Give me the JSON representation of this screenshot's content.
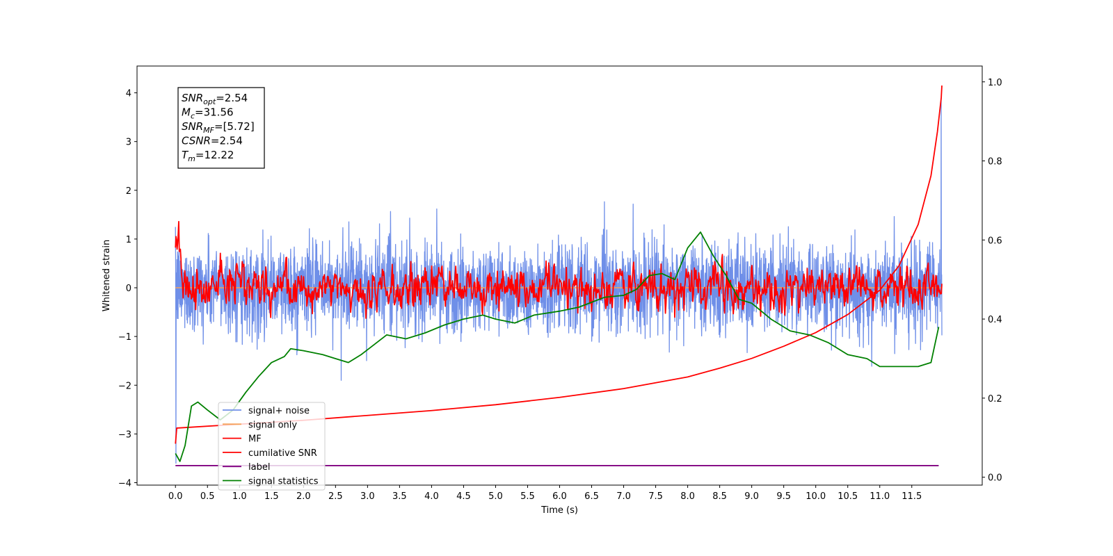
{
  "chart_data": {
    "type": "line",
    "xlabel": "Time (s)",
    "ylabel": "Whitened strain",
    "xlim": [
      -0.6,
      12.6
    ],
    "ylim": [
      -4.05,
      4.55
    ],
    "ylim_right": [
      -0.02,
      1.04
    ],
    "x_ticks": [
      "0.0",
      "0.5",
      "1.0",
      "1.5",
      "2.0",
      "2.5",
      "3.0",
      "3.5",
      "4.0",
      "4.5",
      "5.0",
      "5.5",
      "6.0",
      "6.5",
      "7.0",
      "7.5",
      "8.0",
      "8.5",
      "9.0",
      "9.5",
      "10.0",
      "10.5",
      "11.0",
      "11.5"
    ],
    "y_ticks": [
      "4",
      "3",
      "2",
      "1",
      "0",
      "−1",
      "−2",
      "−3",
      "−4"
    ],
    "y_ticks_right": [
      "1.0",
      "0.8",
      "0.6",
      "0.4",
      "0.2",
      "0.0"
    ],
    "grid": false,
    "legend_position": "lower-left",
    "annotation": [
      {
        "sym": "SNR",
        "sub": "opt",
        "val": "=2.54"
      },
      {
        "sym": "M",
        "sub": "c",
        "val": "=31.56"
      },
      {
        "sym": "SNR",
        "sub": "MF",
        "val": "=[5.72]"
      },
      {
        "sym": "CSNR",
        "sub": "",
        "val": "=2.54"
      },
      {
        "sym": "T",
        "sub": "m",
        "val": "=12.22"
      }
    ],
    "series": [
      {
        "name": "signal+ noise",
        "color": "#6f8fe8",
        "axis": "left",
        "kind": "noise",
        "x_range": [
          0,
          11.97
        ],
        "std": 0.45,
        "ymin": -1.9,
        "ymax": 2.3,
        "end_spike": 3.9
      },
      {
        "name": "signal only",
        "color": "#f5a15a",
        "axis": "left",
        "kind": "flat",
        "x_range": [
          0,
          11.97
        ],
        "value": 0.0
      },
      {
        "name": "MF",
        "color": "#ff0000",
        "axis": "left",
        "kind": "mf",
        "x_range": [
          0,
          11.97
        ],
        "start_peak": 0.98,
        "amplitude": 0.2
      },
      {
        "name": "cumilative SNR",
        "color": "#ff0000",
        "axis": "left",
        "x": [
          0,
          0.02,
          1,
          2,
          3,
          4,
          5,
          6,
          7,
          8,
          8.5,
          9,
          9.5,
          10,
          10.5,
          11,
          11.3,
          11.6,
          11.8,
          11.9,
          11.96,
          11.97
        ],
        "y": [
          -3.2,
          -2.88,
          -2.8,
          -2.72,
          -2.62,
          -2.52,
          -2.4,
          -2.25,
          -2.07,
          -1.83,
          -1.65,
          -1.45,
          -1.2,
          -0.92,
          -0.55,
          -0.05,
          0.45,
          1.3,
          2.3,
          3.2,
          3.9,
          4.15
        ]
      },
      {
        "name": "label",
        "color": "#800080",
        "axis": "left",
        "x": [
          0,
          11.92
        ],
        "y": [
          -3.65,
          -3.65
        ]
      },
      {
        "name": "signal statistics",
        "color": "#008000",
        "axis": "right",
        "x": [
          0,
          0.07,
          0.15,
          0.25,
          0.35,
          0.5,
          0.7,
          0.9,
          1.1,
          1.3,
          1.5,
          1.7,
          1.8,
          2.0,
          2.3,
          2.5,
          2.7,
          2.9,
          3.1,
          3.3,
          3.6,
          3.9,
          4.2,
          4.5,
          4.8,
          5.0,
          5.3,
          5.6,
          6.0,
          6.3,
          6.7,
          7.0,
          7.2,
          7.4,
          7.6,
          7.8,
          8.0,
          8.2,
          8.4,
          8.6,
          8.8,
          9.0,
          9.3,
          9.6,
          9.9,
          10.2,
          10.5,
          10.8,
          11.0,
          11.3,
          11.6,
          11.8,
          11.92
        ],
        "y": [
          0.06,
          0.04,
          0.08,
          0.18,
          0.19,
          0.17,
          0.145,
          0.17,
          0.215,
          0.255,
          0.29,
          0.305,
          0.325,
          0.32,
          0.31,
          0.3,
          0.29,
          0.31,
          0.335,
          0.36,
          0.35,
          0.365,
          0.385,
          0.4,
          0.41,
          0.4,
          0.39,
          0.41,
          0.42,
          0.43,
          0.455,
          0.46,
          0.475,
          0.51,
          0.515,
          0.5,
          0.58,
          0.62,
          0.56,
          0.51,
          0.45,
          0.44,
          0.4,
          0.37,
          0.36,
          0.34,
          0.31,
          0.3,
          0.28,
          0.28,
          0.28,
          0.29,
          0.38
        ]
      }
    ]
  }
}
